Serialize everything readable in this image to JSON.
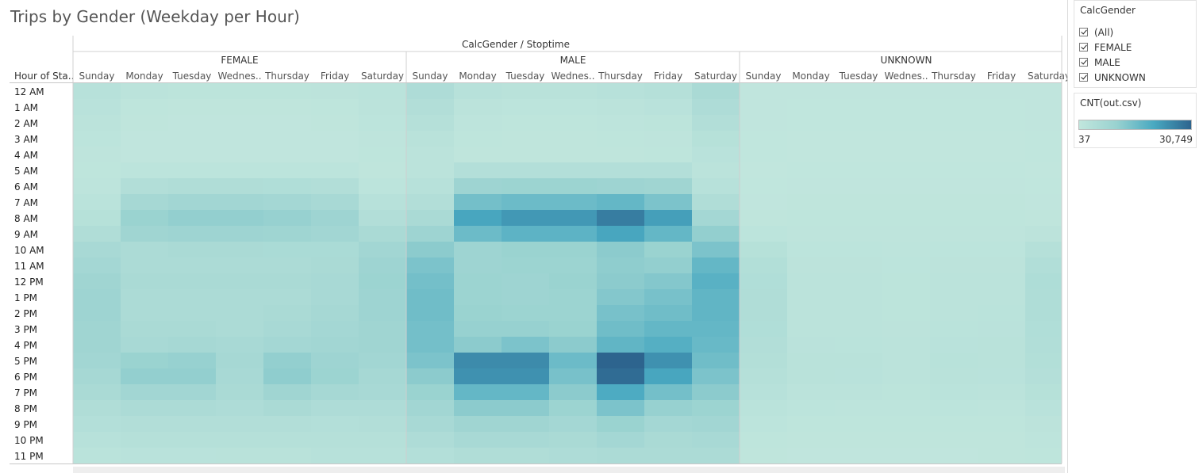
{
  "title": "Trips by Gender (Weekday per Hour)",
  "filter": {
    "title": "CalcGender",
    "items": [
      {
        "label": "(All)",
        "checked": true
      },
      {
        "label": "FEMALE",
        "checked": true
      },
      {
        "label": "MALE",
        "checked": true
      },
      {
        "label": "UNKNOWN",
        "checked": true
      }
    ]
  },
  "legend": {
    "title": "CNT(out.csv)",
    "min_label": "37",
    "max_label": "30,749",
    "colors": [
      "#c1e6dd",
      "#99d2d0",
      "#49a9c1",
      "#2d648e"
    ]
  },
  "chart_data": {
    "type": "heatmap",
    "title": "Trips by Gender (Weekday per Hour)",
    "column_header": "CalcGender / Stoptime",
    "row_header": "Hour of Sta..",
    "groups": [
      "FEMALE",
      "MALE",
      "UNKNOWN"
    ],
    "days": [
      "Sunday",
      "Monday",
      "Tuesday",
      "Wednes..",
      "Thursday",
      "Friday",
      "Saturday"
    ],
    "hours": [
      "12 AM",
      "1 AM",
      "2 AM",
      "3 AM",
      "4 AM",
      "5 AM",
      "6 AM",
      "7 AM",
      "8 AM",
      "9 AM",
      "10 AM",
      "11 AM",
      "12 PM",
      "1 PM",
      "2 PM",
      "3 PM",
      "4 PM",
      "5 PM",
      "6 PM",
      "7 PM",
      "8 PM",
      "9 PM",
      "10 PM",
      "11 PM"
    ],
    "color_min": 37,
    "color_max": 30749,
    "values": {
      "FEMALE": [
        [
          2500,
          1500,
          1300,
          1300,
          1300,
          1400,
          1800
        ],
        [
          2000,
          800,
          600,
          600,
          600,
          700,
          1500
        ],
        [
          1600,
          500,
          400,
          400,
          400,
          500,
          1200
        ],
        [
          1200,
          300,
          300,
          300,
          300,
          300,
          900
        ],
        [
          900,
          300,
          300,
          300,
          300,
          300,
          700
        ],
        [
          800,
          1200,
          1200,
          1200,
          1200,
          1200,
          600
        ],
        [
          1000,
          4000,
          4500,
          4500,
          4300,
          4000,
          1200
        ],
        [
          1800,
          7000,
          8000,
          8000,
          7500,
          6500,
          2500
        ],
        [
          2800,
          10000,
          11000,
          11000,
          10500,
          9000,
          4000
        ],
        [
          4500,
          8500,
          9000,
          9000,
          8800,
          8000,
          6000
        ],
        [
          6500,
          5500,
          6000,
          6000,
          5800,
          5800,
          8000
        ],
        [
          7500,
          5500,
          5500,
          5500,
          5500,
          6000,
          9000
        ],
        [
          8500,
          6000,
          6000,
          6000,
          6000,
          6500,
          9500
        ],
        [
          9000,
          5500,
          5500,
          5500,
          5500,
          6500,
          9000
        ],
        [
          9000,
          5500,
          5500,
          5500,
          6000,
          7000,
          9000
        ],
        [
          8500,
          6000,
          6000,
          5500,
          6500,
          7500,
          8500
        ],
        [
          8500,
          6500,
          7000,
          6500,
          7500,
          8000,
          8500
        ],
        [
          8000,
          10000,
          10500,
          7000,
          11000,
          9000,
          8000
        ],
        [
          7000,
          11000,
          11000,
          6500,
          11500,
          9500,
          7000
        ],
        [
          6000,
          8000,
          8000,
          6000,
          8500,
          7000,
          6500
        ],
        [
          4500,
          5500,
          5500,
          5000,
          6000,
          5000,
          5000
        ],
        [
          3500,
          4000,
          4000,
          4000,
          4000,
          3500,
          4000
        ],
        [
          2500,
          3000,
          3000,
          3000,
          3000,
          3000,
          3000
        ],
        [
          1800,
          2000,
          2000,
          2200,
          2200,
          2500,
          2500
        ]
      ],
      "MALE": [
        [
          5000,
          2500,
          2200,
          2200,
          2500,
          3200,
          6000
        ],
        [
          4000,
          1500,
          1200,
          1200,
          1500,
          2000,
          5000
        ],
        [
          3200,
          1000,
          800,
          800,
          1000,
          1300,
          4000
        ],
        [
          2200,
          700,
          600,
          600,
          700,
          900,
          2800
        ],
        [
          1500,
          600,
          600,
          600,
          600,
          700,
          2000
        ],
        [
          1500,
          3500,
          3500,
          3500,
          3500,
          3500,
          1500
        ],
        [
          2500,
          9000,
          9500,
          9500,
          9000,
          8500,
          2500
        ],
        [
          4000,
          15000,
          16000,
          16000,
          17000,
          14000,
          4500
        ],
        [
          6000,
          21000,
          23000,
          23000,
          27000,
          22000,
          7500
        ],
        [
          9000,
          16000,
          18000,
          18000,
          21000,
          17000,
          11000
        ],
        [
          12000,
          9000,
          10000,
          10000,
          12000,
          10000,
          14000
        ],
        [
          14000,
          9000,
          9500,
          9500,
          11500,
          11000,
          17000
        ],
        [
          15000,
          9500,
          9000,
          10000,
          12000,
          13000,
          18500
        ],
        [
          15500,
          9500,
          9000,
          9500,
          13000,
          14500,
          17500
        ],
        [
          15500,
          10000,
          9500,
          9500,
          14500,
          15500,
          17500
        ],
        [
          15000,
          10500,
          10500,
          10000,
          15500,
          17000,
          17000
        ],
        [
          15000,
          12000,
          14000,
          12000,
          17500,
          19000,
          16500
        ],
        [
          14000,
          25000,
          25000,
          16000,
          30749,
          24000,
          15500
        ],
        [
          12000,
          24000,
          24000,
          14500,
          29500,
          21000,
          14000
        ],
        [
          10000,
          17000,
          17000,
          12000,
          20000,
          15000,
          12000
        ],
        [
          8000,
          12000,
          12000,
          9500,
          14000,
          10500,
          9500
        ],
        [
          6500,
          8500,
          8500,
          7500,
          10000,
          7500,
          8000
        ],
        [
          5000,
          6500,
          6500,
          6000,
          7500,
          6000,
          6500
        ],
        [
          3500,
          4500,
          4500,
          5000,
          5500,
          5500,
          5500
        ]
      ],
      "UNKNOWN": [
        [
          400,
          300,
          300,
          300,
          300,
          300,
          400
        ],
        [
          350,
          250,
          250,
          250,
          250,
          250,
          350
        ],
        [
          300,
          200,
          200,
          200,
          200,
          200,
          300
        ],
        [
          250,
          150,
          150,
          150,
          150,
          150,
          250
        ],
        [
          200,
          150,
          150,
          150,
          150,
          150,
          200
        ],
        [
          150,
          200,
          200,
          200,
          200,
          200,
          150
        ],
        [
          200,
          350,
          350,
          350,
          350,
          350,
          200
        ],
        [
          300,
          500,
          500,
          500,
          500,
          500,
          300
        ],
        [
          500,
          700,
          700,
          700,
          700,
          700,
          500
        ],
        [
          1200,
          900,
          900,
          900,
          900,
          900,
          1400
        ],
        [
          2800,
          1200,
          1200,
          1100,
          1200,
          1200,
          3200
        ],
        [
          3800,
          1400,
          1400,
          1200,
          1400,
          1400,
          4200
        ],
        [
          4300,
          1500,
          1500,
          1300,
          1500,
          1600,
          4800
        ],
        [
          4500,
          1500,
          1500,
          1300,
          1600,
          1700,
          4600
        ],
        [
          4500,
          1600,
          1500,
          1300,
          1700,
          1800,
          4600
        ],
        [
          4300,
          1700,
          1600,
          1400,
          1800,
          1900,
          4300
        ],
        [
          4000,
          1900,
          1800,
          1500,
          2000,
          2100,
          4100
        ],
        [
          3600,
          2200,
          2100,
          1600,
          2300,
          2200,
          3800
        ],
        [
          3200,
          2100,
          2000,
          1500,
          2200,
          2000,
          3400
        ],
        [
          2600,
          1700,
          1600,
          1300,
          1800,
          1600,
          2800
        ],
        [
          1800,
          1200,
          1100,
          1000,
          1200,
          1100,
          2000
        ],
        [
          1200,
          800,
          800,
          800,
          800,
          800,
          1400
        ],
        [
          800,
          600,
          600,
          600,
          600,
          600,
          1000
        ],
        [
          500,
          400,
          400,
          400,
          400,
          500,
          700
        ]
      ]
    }
  }
}
